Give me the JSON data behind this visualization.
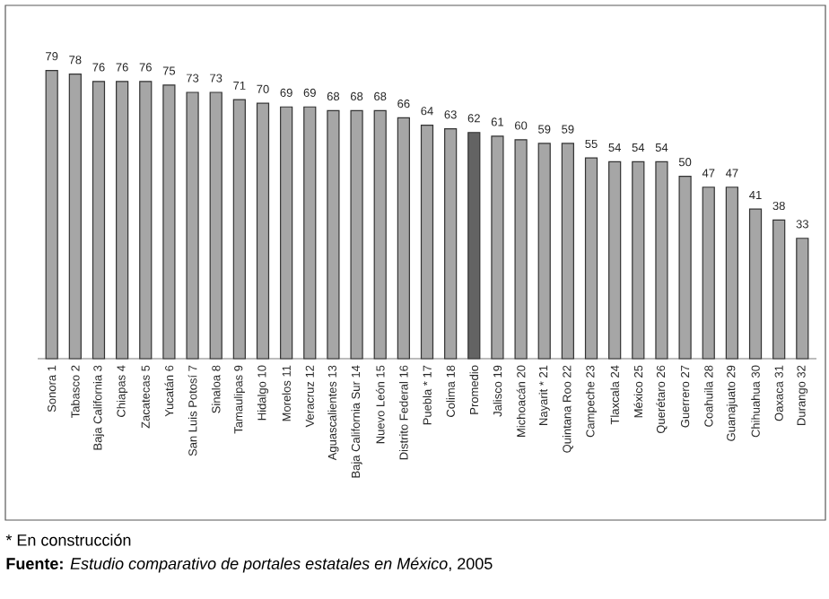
{
  "chart_data": {
    "type": "bar",
    "categories": [
      "Sonora  1",
      "Tabasco  2",
      "Baja California  3",
      "Chiapas  4",
      "Zacatecas  5",
      "Yucatán  6",
      "San Luis Potosí  7",
      "Sinaloa  8",
      "Tamaulipas  9",
      "Hidalgo  10",
      "Morelos  11",
      "Veracruz  12",
      "Aguascalientes  13",
      "Baja California Sur  14",
      "Nuevo León  15",
      "Distrito Federal  16",
      "Puebla *  17",
      "Colima  18",
      "Promedio",
      "Jalisco  19",
      "Michoacán  20",
      "Nayarit *  21",
      "Quintana Roo  22",
      "Campeche  23",
      "Tlaxcala  24",
      "México  25",
      "Querétaro  26",
      "Guerrero  27",
      "Coahuila  28",
      "Guanajuato  29",
      "Chihuahua  30",
      "Oaxaca  31",
      "Durango  32"
    ],
    "values": [
      79,
      78,
      76,
      76,
      76,
      75,
      73,
      73,
      71,
      70,
      69,
      69,
      68,
      68,
      68,
      66,
      64,
      63,
      62,
      61,
      60,
      59,
      59,
      55,
      54,
      54,
      54,
      50,
      47,
      47,
      41,
      38,
      33
    ],
    "colors": [
      "#a6a6a6",
      "#a6a6a6",
      "#a6a6a6",
      "#a6a6a6",
      "#a6a6a6",
      "#a6a6a6",
      "#a6a6a6",
      "#a6a6a6",
      "#a6a6a6",
      "#a6a6a6",
      "#a6a6a6",
      "#a6a6a6",
      "#a6a6a6",
      "#a6a6a6",
      "#a6a6a6",
      "#a6a6a6",
      "#a6a6a6",
      "#a6a6a6",
      "#636363",
      "#a6a6a6",
      "#a6a6a6",
      "#a6a6a6",
      "#a6a6a6",
      "#a6a6a6",
      "#a6a6a6",
      "#a6a6a6",
      "#a6a6a6",
      "#a6a6a6",
      "#a6a6a6",
      "#a6a6a6",
      "#a6a6a6",
      "#a6a6a6",
      "#a6a6a6"
    ],
    "tick_labels": "x",
    "data_labels": true,
    "annotations": [
      "* En construcción",
      "**Fuente:** *Estudio comparativo de portales estatales en México*, 2005"
    ]
  }
}
